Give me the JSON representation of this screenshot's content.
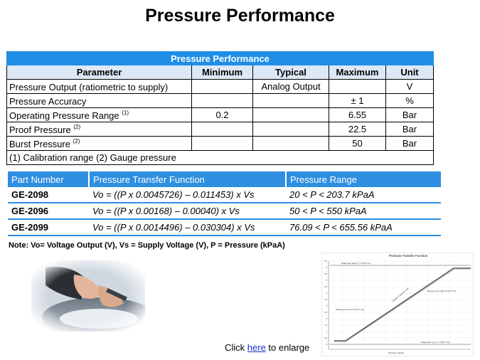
{
  "title": "Pressure Performance",
  "performance_table": {
    "caption": "Pressure Performance",
    "headers": [
      "Parameter",
      "Minimum",
      "Typical",
      "Maximum",
      "Unit"
    ],
    "rows": [
      {
        "parameter": "Pressure Output (ratiometric to supply)",
        "sup": "",
        "minimum": "",
        "typical": "Analog Output",
        "maximum": "",
        "unit": "V"
      },
      {
        "parameter": "Pressure Accuracy",
        "sup": "",
        "minimum": "",
        "typical": "",
        "maximum": "± 1",
        "unit": "%"
      },
      {
        "parameter": "Operating Pressure Range ",
        "sup": "(1)",
        "minimum": "0.2",
        "typical": "",
        "maximum": "6.55",
        "unit": "Bar"
      },
      {
        "parameter": "Proof Pressure ",
        "sup": "(2)",
        "minimum": "",
        "typical": "",
        "maximum": "22.5",
        "unit": "Bar"
      },
      {
        "parameter": "Burst Pressure ",
        "sup": "(2)",
        "minimum": "",
        "typical": "",
        "maximum": "50",
        "unit": "Bar"
      }
    ],
    "footnote": "(1) Calibration range  (2) Gauge pressure"
  },
  "part_table": {
    "headers": [
      "Part Number",
      "Pressure Transfer Function",
      "Pressure Range"
    ],
    "rows": [
      {
        "part": "GE-2098",
        "function": "Vo = ((P x 0.0045726) – 0.011453) x Vs",
        "range": "20 < P < 203.7 kPaA"
      },
      {
        "part": "GE-2096",
        "function": "Vo = ((P x 0.00168) – 0.00040) x Vs",
        "range": "50 < P < 550 kPaA"
      },
      {
        "part": "GE-2099",
        "function": "Vo = ((P x 0.0014496) – 0.030304) x Vs",
        "range": "76.09 < P < 655.56 kPaA"
      }
    ]
  },
  "note": "Note: Vo= Voltage Output (V), Vs = Supply Voltage (V), P = Pressure (kPaA)",
  "graph": {
    "title": "Pressure Transfer Function",
    "xlabel": "Pressure (kPaA)",
    "labels": {
      "diag_high": "Diagnostic High (>= 0.95 X Vs)",
      "clip_high": "Clipping Limit High (0.93 X Vs)",
      "clip_low": "Clipping Limit Low (0.05 X Vs)",
      "diag_low": "Diagnostic Low (<= 0.05 X Vs)",
      "transfer": "Transfer Function Line"
    },
    "y_ticks": [
      "6.5",
      "6",
      "5.5",
      "5",
      "4.5",
      "4",
      "3.5",
      "3",
      "2.5",
      "2",
      "1.5",
      "1",
      "0.5",
      "0"
    ]
  },
  "enlarge": {
    "before": "Click ",
    "link": "here",
    "after": " to enlarge"
  },
  "colors": {
    "header_blue": "#1f8ee6",
    "header_light": "#dde8f6",
    "link": "#1a2fc7"
  }
}
